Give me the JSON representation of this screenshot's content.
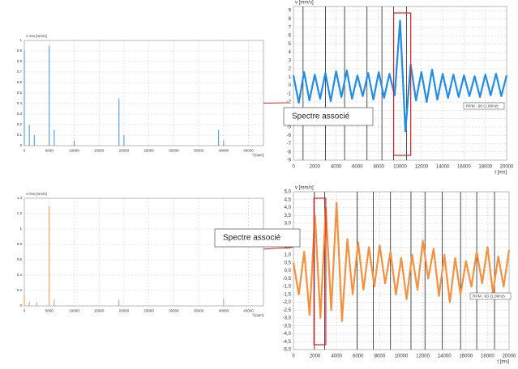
{
  "chart_data": [
    {
      "type": "stem",
      "color": "#3a94e6",
      "ylabel": "v rms [mm/s]",
      "xlabel": "f [cpm]",
      "x": [
        0,
        1000,
        2000,
        5000,
        6000,
        10000,
        19000,
        20000,
        39000,
        40000
      ],
      "values": [
        0.9,
        0.2,
        0.1,
        0.95,
        0.15,
        0.05,
        0.45,
        0.1,
        0.15,
        0.05
      ],
      "xlim": [
        0,
        48000
      ],
      "xticks": [
        0,
        5000,
        10000,
        15000,
        20000,
        25000,
        30000,
        35000,
        40000,
        45000
      ],
      "ylim": [
        0,
        1
      ],
      "yticks": [
        0,
        0.1,
        0.2,
        0.3,
        0.4,
        0.5,
        0.6,
        0.7,
        0.8,
        0.9,
        1
      ],
      "grid": true
    },
    {
      "type": "line",
      "color": "#1f8ee8",
      "ylabel": "v [mm/s]",
      "xlabel": "t [ms]",
      "x": [
        0,
        500,
        1000,
        1500,
        2000,
        2500,
        3000,
        3500,
        4000,
        4500,
        5000,
        5500,
        6000,
        6500,
        7000,
        7500,
        8000,
        8500,
        9000,
        9500,
        10000,
        10500,
        11000,
        11500,
        12000,
        12500,
        13000,
        13500,
        14000,
        14500,
        15000,
        15500,
        16000,
        16500,
        17000,
        17500,
        18000,
        18500,
        19000,
        19500,
        20000
      ],
      "values": [
        1.2,
        -2.1,
        1.6,
        -1.8,
        1.3,
        -1.6,
        1.5,
        -1.9,
        1.7,
        -1.4,
        1.8,
        -1.6,
        1.2,
        -1.3,
        1.5,
        -1.7,
        1.6,
        -1.5,
        1.4,
        -1.2,
        7.8,
        -5.5,
        2.5,
        -1.8,
        1.6,
        -2.0,
        1.9,
        -1.7,
        1.4,
        -1.5,
        1.3,
        -1.4,
        1.2,
        -1.3,
        1.1,
        -1.4,
        1.3,
        -1.2,
        1.4,
        -1.3,
        1.2
      ],
      "xlim": [
        0,
        20000
      ],
      "xticks": [
        0,
        2000,
        4000,
        6000,
        8000,
        10000,
        12000,
        14000,
        16000,
        18000,
        20000
      ],
      "ylim": [
        -9,
        9.5
      ],
      "yticks": [
        -9,
        -8,
        -7,
        -6,
        -5,
        -4,
        -3,
        -2,
        -1,
        0,
        1,
        2,
        3,
        4,
        5,
        6,
        7,
        8,
        9
      ],
      "grid": true,
      "markers": [
        900,
        3000,
        4800,
        6900,
        8300,
        9400,
        10600
      ],
      "highlight_x": [
        9400,
        11000
      ],
      "legend": "RPM : 60 (1.00Hz)",
      "annotation": "Spectre associé"
    },
    {
      "type": "stem",
      "color": "#f39045",
      "ylabel": "v rms [mm/s]",
      "xlabel": "f [cpm]",
      "x": [
        0,
        1000,
        2500,
        5000,
        6000,
        19000,
        40000
      ],
      "values": [
        0.15,
        0.05,
        0.05,
        1.3,
        0.08,
        0.08,
        0.1
      ],
      "xlim": [
        0,
        48000
      ],
      "xticks": [
        0,
        5000,
        10000,
        15000,
        20000,
        25000,
        30000,
        35000,
        40000,
        45000
      ],
      "ylim": [
        0,
        1.4
      ],
      "yticks": [
        0,
        0.2,
        0.4,
        0.6,
        0.8,
        1,
        1.2,
        1.4
      ],
      "grid": true
    },
    {
      "type": "line",
      "color": "#f5903c",
      "ylabel": "v [mm/s]",
      "xlabel": "t [ms]",
      "x": [
        0,
        500,
        1000,
        1500,
        2000,
        2500,
        3000,
        3500,
        4000,
        4500,
        5000,
        5500,
        6000,
        6500,
        7000,
        7500,
        8000,
        8500,
        9000,
        9500,
        10000,
        10500,
        11000,
        11500,
        12000,
        12500,
        13000,
        13500,
        14000,
        14500,
        15000,
        15500,
        16000,
        16500,
        17000,
        17500,
        18000,
        18500,
        19000,
        19500,
        20000
      ],
      "values": [
        0.5,
        -1.5,
        1.2,
        -2.8,
        3.5,
        -3.0,
        4.0,
        -2.5,
        4.3,
        -3.2,
        2.0,
        -1.5,
        1.8,
        -1.2,
        1.5,
        -1.0,
        1.6,
        -0.8,
        1.2,
        -1.5,
        0.8,
        -1.8,
        1.0,
        -1.2,
        1.9,
        -0.5,
        1.4,
        -1.6,
        1.0,
        -2.0,
        0.8,
        -1.5,
        0.6,
        -1.0,
        1.2,
        -0.8,
        1.5,
        -1.4,
        0.9,
        -1.0,
        1.3
      ],
      "xlim": [
        0,
        20000
      ],
      "xticks": [
        0,
        2000,
        4000,
        6000,
        8000,
        10000,
        12000,
        14000,
        16000,
        18000,
        20000
      ],
      "ylim": [
        -5,
        5
      ],
      "yticks": [
        {
          "value": 5,
          "label": "5,0"
        },
        {
          "value": 4.5,
          "label": "4,5"
        },
        {
          "value": 4,
          "label": "4,0"
        },
        {
          "value": 3.5,
          "label": "3,5"
        },
        {
          "value": 3,
          "label": "3,0"
        },
        {
          "value": 2.5,
          "label": "2,5"
        },
        {
          "value": 2,
          "label": "2,0"
        },
        {
          "value": 1.5,
          "label": "1,5"
        },
        {
          "value": 1,
          "label": "1,0"
        },
        {
          "value": 0.5,
          "label": "0,5"
        },
        {
          "value": 0,
          "label": "0,0"
        },
        {
          "value": -0.5,
          "label": "-0,5"
        },
        {
          "value": -1,
          "label": "-1,0"
        },
        {
          "value": -1.5,
          "label": "-1,5"
        },
        {
          "value": -2,
          "label": "-2,0"
        },
        {
          "value": -2.5,
          "label": "-2,5"
        },
        {
          "value": -3,
          "label": "-3,0"
        },
        {
          "value": -3.5,
          "label": "-3,5"
        },
        {
          "value": -4,
          "label": "-4,0"
        },
        {
          "value": -4.5,
          "label": "-4,5"
        },
        {
          "value": -5,
          "label": "-5,0"
        }
      ],
      "grid": true,
      "markers": [
        1940,
        2900,
        5900,
        7400,
        9000,
        10900,
        12200,
        13800,
        15500,
        17000,
        18650
      ],
      "highlight_x": [
        1900,
        3000
      ],
      "legend": "RPM : 60 (1.00Hz)",
      "annotation": "Spectre associé"
    }
  ]
}
